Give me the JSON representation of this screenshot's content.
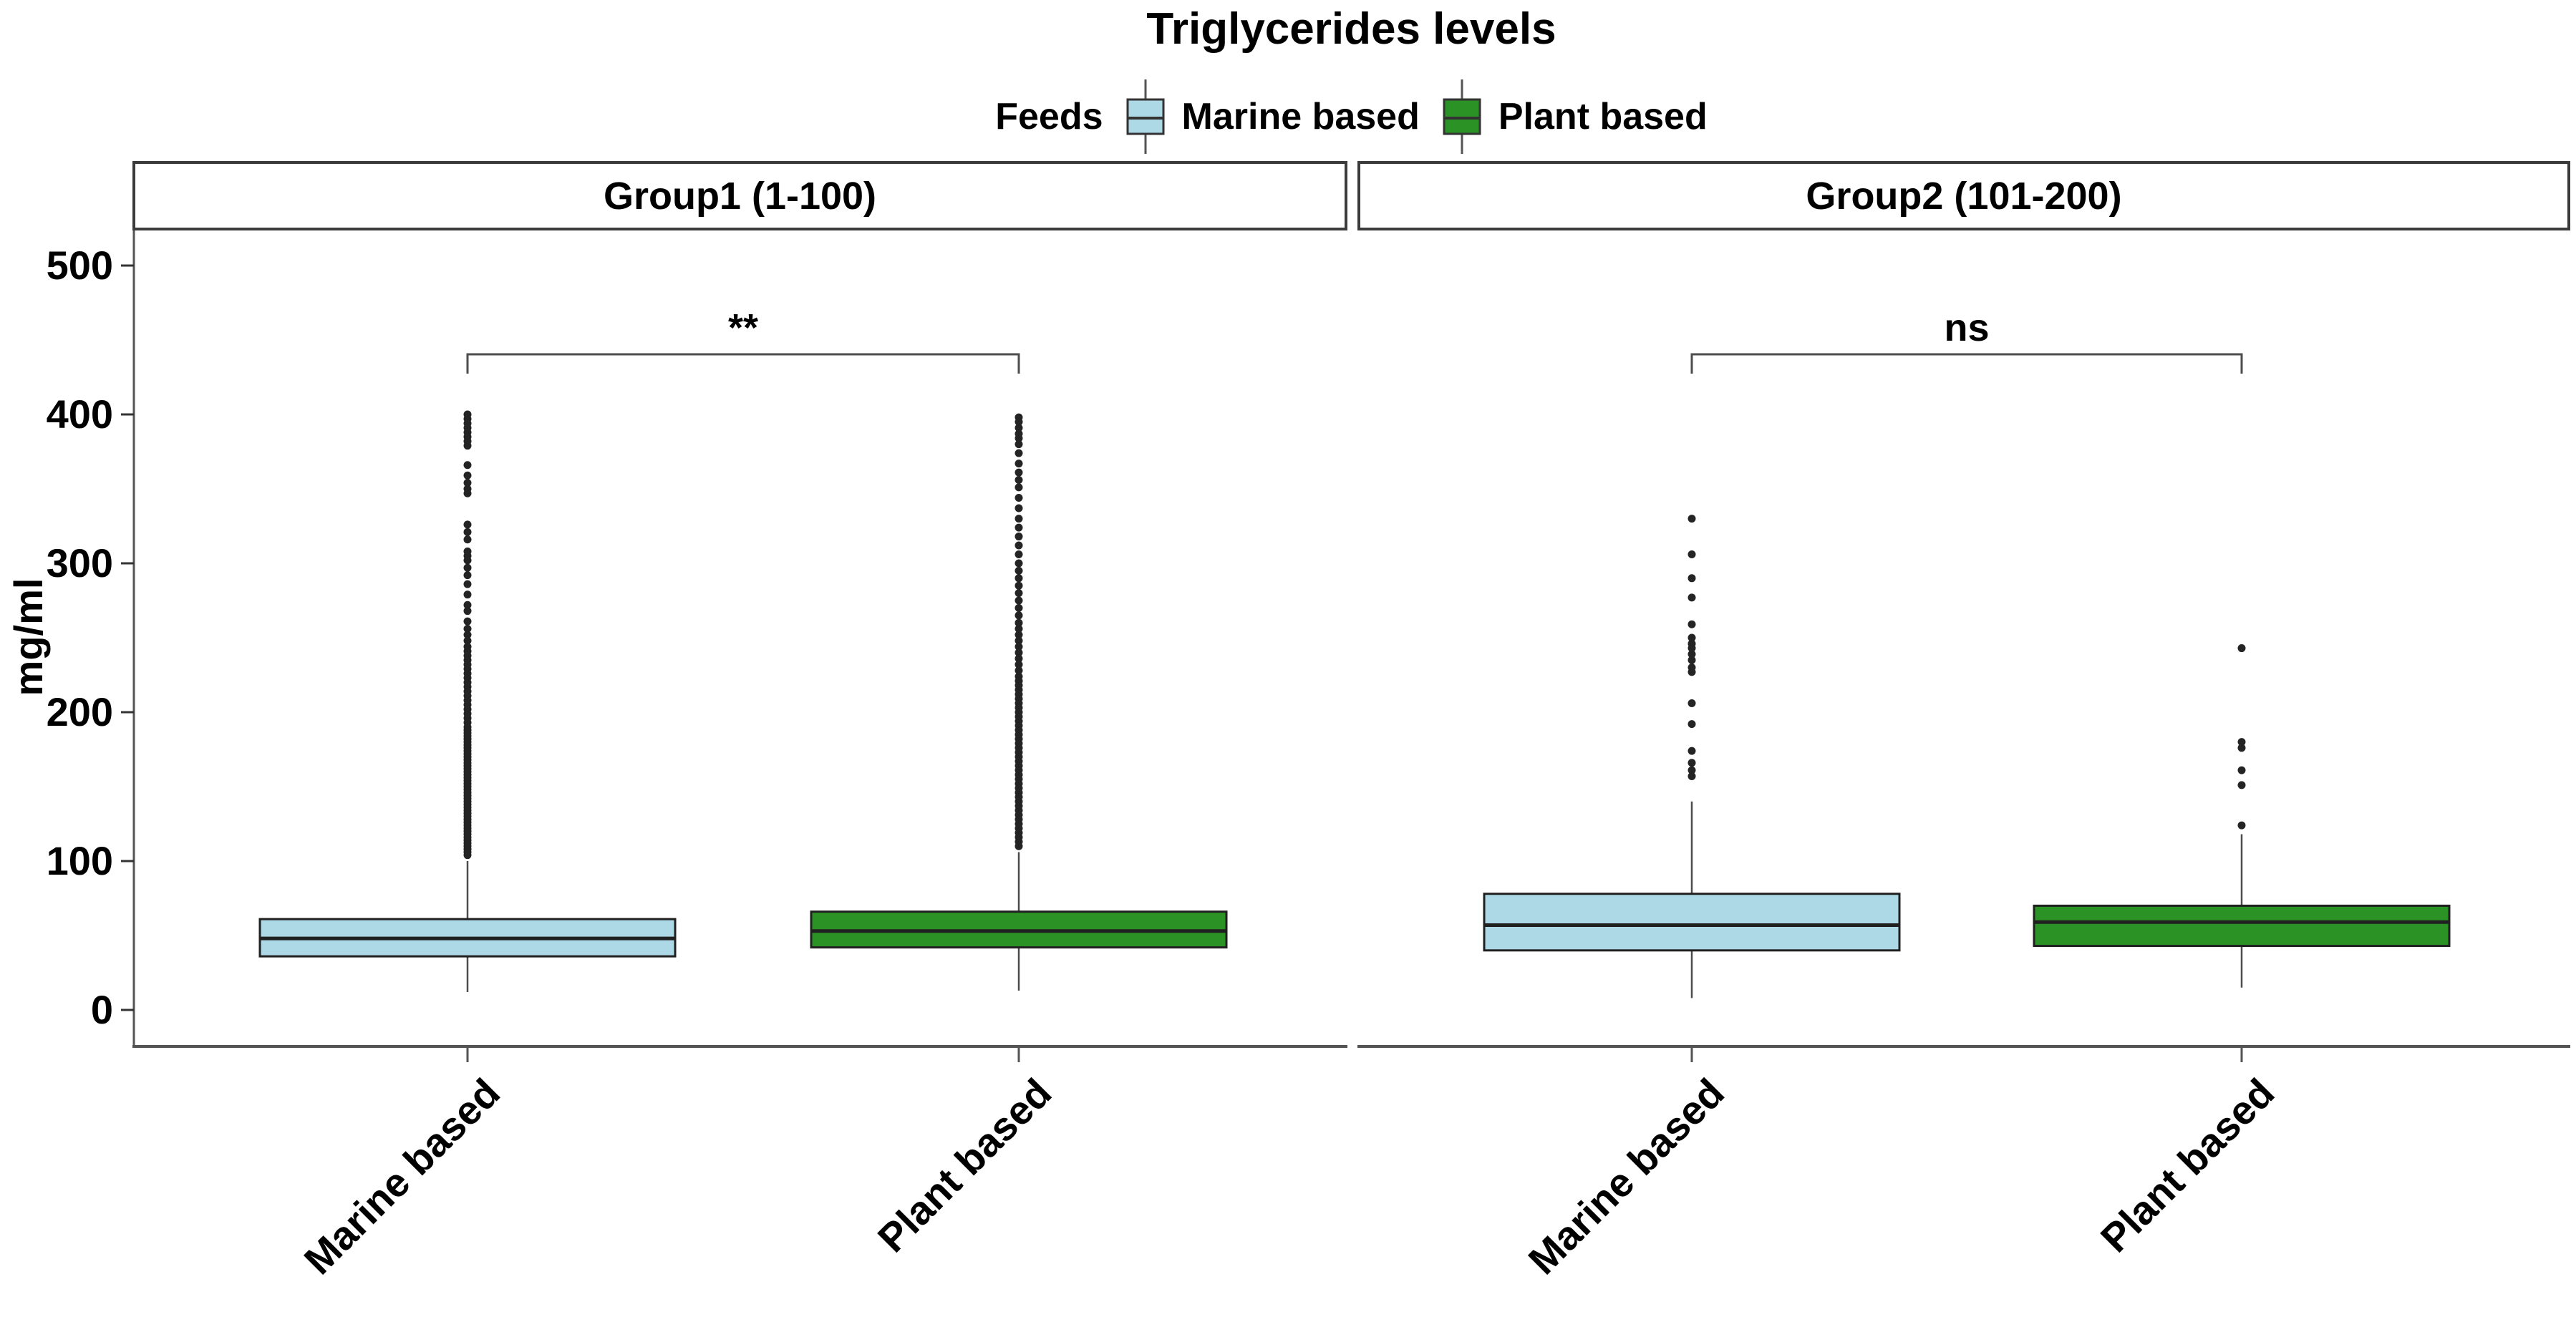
{
  "chart_data": {
    "type": "boxplot",
    "title": "Triglycerides levels",
    "ylabel": "mg/ml",
    "ylim": [
      0,
      520
    ],
    "y_ticks": [
      0,
      100,
      200,
      300,
      400,
      500
    ],
    "grid": false,
    "legend": {
      "title": "Feeds",
      "position": "top",
      "entries": [
        {
          "label": "Marine based",
          "color": "#ADD8E6"
        },
        {
          "label": "Plant based",
          "color": "#2B9226"
        }
      ]
    },
    "colors": {
      "box_stroke": "#202020",
      "axis_line": "#545454",
      "outlier": "#242424",
      "bracket": "#4d4d4d"
    },
    "facets": [
      {
        "label": "Group1 (1-100)",
        "significance": "**",
        "x_categories": [
          "Marine based",
          "Plant based"
        ],
        "boxes": [
          {
            "category": "Marine based",
            "fill": "#ADD8E6",
            "whisker_low": 12,
            "q1": 36,
            "median": 48,
            "q3": 61,
            "whisker_high": 100,
            "outliers": [
              400,
              397,
              394,
              391,
              388,
              385,
              382,
              379,
              366,
              359,
              354,
              350,
              347,
              326,
              321,
              316,
              308,
              305,
              302,
              297,
              292,
              286,
              279,
              272,
              268,
              261,
              256,
              252,
              248,
              244,
              241,
              238,
              235,
              232,
              229,
              226,
              223,
              220,
              217,
              214,
              211,
              208,
              205,
              202,
              199,
              196,
              193,
              190,
              188,
              186,
              184,
              182,
              180,
              178,
              176,
              174,
              172,
              170,
              168,
              166,
              164,
              162,
              160,
              158,
              156,
              154,
              152,
              150,
              148,
              146,
              144,
              142,
              140,
              138,
              136,
              134,
              132,
              130,
              128,
              126,
              124,
              122,
              120,
              118,
              116,
              114,
              112,
              110,
              108,
              106,
              104
            ]
          },
          {
            "category": "Plant based",
            "fill": "#2B9226",
            "whisker_low": 13,
            "q1": 42,
            "median": 53,
            "q3": 66,
            "whisker_high": 106,
            "outliers": [
              398,
              395,
              391,
              387,
              384,
              380,
              374,
              367,
              361,
              356,
              351,
              344,
              337,
              330,
              324,
              318,
              312,
              306,
              300,
              295,
              290,
              285,
              280,
              275,
              270,
              265,
              260,
              256,
              252,
              248,
              244,
              240,
              236,
              232,
              228,
              224,
              221,
              218,
              215,
              212,
              209,
              206,
              203,
              200,
              197,
              194,
              191,
              188,
              185,
              182,
              179,
              176,
              173,
              170,
              167,
              164,
              161,
              158,
              155,
              152,
              149,
              146,
              143,
              140,
              137,
              134,
              131,
              128,
              125,
              122,
              119,
              116,
              113,
              110
            ]
          }
        ]
      },
      {
        "label": "Group2 (101-200)",
        "significance": "ns",
        "x_categories": [
          "Marine based",
          "Plant based"
        ],
        "boxes": [
          {
            "category": "Marine based",
            "fill": "#ADD8E6",
            "whisker_low": 8,
            "q1": 40,
            "median": 57,
            "q3": 78,
            "whisker_high": 140,
            "outliers": [
              330,
              306,
              290,
              277,
              259,
              250,
              246,
              243,
              239,
              235,
              230,
              227,
              206,
              192,
              174,
              166,
              161,
              157
            ]
          },
          {
            "category": "Plant based",
            "fill": "#2B9226",
            "whisker_low": 15,
            "q1": 43,
            "median": 59,
            "q3": 70,
            "whisker_high": 118,
            "outliers": [
              243,
              180,
              176,
              161,
              151,
              124
            ]
          }
        ]
      }
    ]
  }
}
